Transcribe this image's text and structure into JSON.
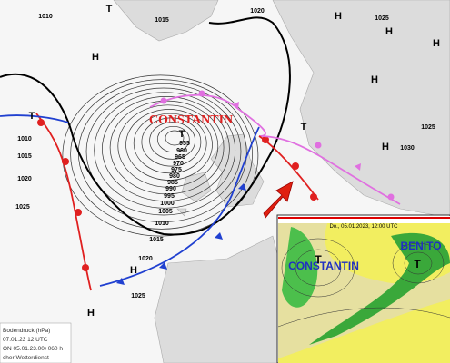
{
  "map": {
    "storm_name": "CONSTANTIN",
    "low_symbol": "T",
    "high_symbol": "H",
    "isobar_labels": {
      "center": [
        955,
        960,
        965,
        970,
        975,
        980,
        985,
        990,
        995,
        1000,
        1005,
        1010,
        1015,
        1020,
        1025
      ],
      "west": [
        1010,
        1015,
        1020,
        1025
      ],
      "north": [
        1010,
        1015,
        1020,
        1025
      ],
      "east": [
        1025,
        1030
      ]
    }
  },
  "legend": {
    "lines": [
      "Bodendruck (hPa)",
      "07.01.23 12 UTC",
      "ON 05.01.23.00+060 h",
      "cher Wetterdienst"
    ]
  },
  "inset": {
    "date": "Do., 05.01.2023, 12:00 UTC",
    "low_a": "CONSTANTIN",
    "low_b": "BENITO",
    "low_symbol": "T"
  }
}
